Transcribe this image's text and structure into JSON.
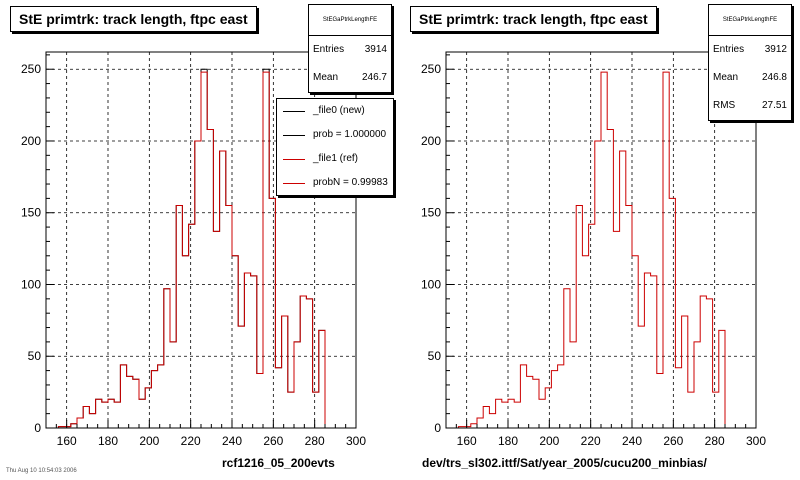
{
  "charts": [
    {
      "title": "StE primtrk: track length, ftpc east",
      "stats": {
        "header": "StEGaPtrkLengthFE",
        "rows": [
          {
            "label": "Entries",
            "value": "3914"
          },
          {
            "label": "Mean",
            "value": "246.7"
          }
        ]
      },
      "legend": [
        {
          "text": "_file0 (new)",
          "color": "#000000"
        },
        {
          "text": "prob = 1.000000",
          "color": "#000000"
        },
        {
          "text": "_file1 (ref)",
          "color": "#cc0000"
        },
        {
          "text": "probN = 0.99983",
          "color": "#cc0000"
        }
      ],
      "footer": "rcf1216_05_200evts",
      "small_note": "Thu Aug 10 10:54:03 2006"
    },
    {
      "title": "StE primtrk: track length, ftpc east",
      "stats": {
        "header": "StEGaPtrkLengthFE",
        "rows": [
          {
            "label": "Entries",
            "value": "3912"
          },
          {
            "label": "Mean",
            "value": "246.8"
          },
          {
            "label": "RMS",
            "value": "27.51"
          }
        ]
      },
      "legend": [],
      "footer": "dev/trs_sl302.ittf/Sat/year_2005/cucu200_minbias/",
      "small_note": ""
    }
  ],
  "chart_data": [
    {
      "type": "histogram",
      "title": "StE primtrk: track length, ftpc east",
      "xlim": [
        150,
        300
      ],
      "ylim": [
        0,
        262
      ],
      "xticks": [
        160,
        180,
        200,
        220,
        240,
        260,
        280,
        300
      ],
      "yticks": [
        0,
        50,
        100,
        150,
        200,
        250
      ],
      "grid": true,
      "bin_edges_start": 150,
      "bin_width": 3,
      "series": [
        {
          "name": "_file0 (new)",
          "color": "#000000",
          "values": [
            0,
            0,
            1,
            1,
            3,
            7,
            15,
            10,
            20,
            18,
            20,
            18,
            44,
            36,
            34,
            20,
            28,
            40,
            44,
            97,
            60,
            155,
            120,
            142,
            200,
            250,
            208,
            137,
            193,
            155,
            120,
            71,
            108,
            106,
            38,
            250,
            160,
            42,
            78,
            25,
            60,
            92,
            90,
            25,
            68,
            0,
            0,
            0,
            0,
            0
          ]
        },
        {
          "name": "_file1 (ref)",
          "color": "#cc0000",
          "values": [
            0,
            0,
            1,
            1,
            3,
            7,
            15,
            10,
            20,
            18,
            20,
            18,
            44,
            36,
            34,
            20,
            28,
            40,
            44,
            97,
            60,
            155,
            120,
            142,
            200,
            248,
            208,
            137,
            193,
            155,
            120,
            71,
            108,
            106,
            38,
            248,
            160,
            42,
            78,
            25,
            60,
            92,
            90,
            25,
            68,
            0,
            0,
            0,
            0,
            0
          ]
        }
      ]
    },
    {
      "type": "histogram",
      "title": "StE primtrk: track length, ftpc east",
      "xlim": [
        150,
        300
      ],
      "ylim": [
        0,
        262
      ],
      "xticks": [
        160,
        180,
        200,
        220,
        240,
        260,
        280,
        300
      ],
      "yticks": [
        0,
        50,
        100,
        150,
        200,
        250
      ],
      "grid": true,
      "bin_edges_start": 150,
      "bin_width": 3,
      "series": [
        {
          "name": "",
          "color": "#cc0000",
          "values": [
            0,
            0,
            1,
            1,
            3,
            7,
            15,
            10,
            20,
            18,
            20,
            18,
            44,
            36,
            34,
            20,
            28,
            40,
            44,
            97,
            60,
            155,
            120,
            142,
            200,
            248,
            208,
            137,
            193,
            155,
            120,
            71,
            108,
            106,
            38,
            248,
            160,
            42,
            78,
            25,
            60,
            92,
            90,
            25,
            68,
            0,
            0,
            0,
            0,
            0
          ]
        }
      ]
    }
  ]
}
